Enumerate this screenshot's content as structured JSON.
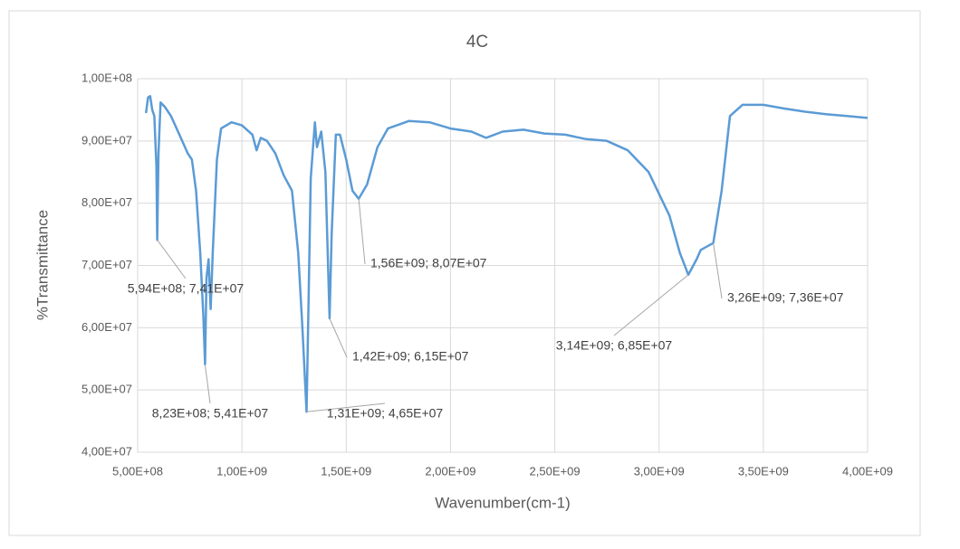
{
  "chart_data": {
    "type": "line",
    "title": "4C",
    "x_label": "Wavenumber(cm-1)",
    "y_label": "%Transmittance",
    "x": [
      540000000,
      550000000,
      560000000,
      570000000,
      580000000,
      590000000,
      594000000,
      600000000,
      610000000,
      630000000,
      660000000,
      700000000,
      740000000,
      760000000,
      780000000,
      800000000,
      815000000,
      823000000,
      830000000,
      840000000,
      850000000,
      860000000,
      880000000,
      900000000,
      950000000,
      1000000000,
      1050000000,
      1070000000,
      1090000000,
      1120000000,
      1160000000,
      1200000000,
      1240000000,
      1270000000,
      1290000000,
      1310000000,
      1320000000,
      1330000000,
      1350000000,
      1360000000,
      1380000000,
      1400000000,
      1420000000,
      1430000000,
      1450000000,
      1470000000,
      1500000000,
      1530000000,
      1560000000,
      1600000000,
      1650000000,
      1700000000,
      1800000000,
      1900000000,
      2000000000,
      2100000000,
      2170000000,
      2250000000,
      2350000000,
      2450000000,
      2550000000,
      2650000000,
      2750000000,
      2850000000,
      2950000000,
      3050000000,
      3100000000,
      3140000000,
      3180000000,
      3200000000,
      3260000000,
      3300000000,
      3340000000,
      3400000000,
      3500000000,
      3600000000,
      3700000000,
      3800000000,
      3900000000,
      4000000000
    ],
    "series": [
      {
        "name": "4C",
        "color": "#5b9bd5",
        "values": [
          94500000,
          97000000,
          97200000,
          95000000,
          94000000,
          86000000,
          74100000,
          88000000,
          96200000,
          95500000,
          94000000,
          91000000,
          88000000,
          87000000,
          82000000,
          72000000,
          62000000,
          54100000,
          68000000,
          71000000,
          63000000,
          72000000,
          87000000,
          92000000,
          93000000,
          92500000,
          91000000,
          88500000,
          90500000,
          90000000,
          88000000,
          84500000,
          82000000,
          72000000,
          60000000,
          46500000,
          65000000,
          84000000,
          93000000,
          89000000,
          91500000,
          85000000,
          61500000,
          75000000,
          91000000,
          91000000,
          87000000,
          82000000,
          80700000,
          83000000,
          89000000,
          92000000,
          93200000,
          93000000,
          92000000,
          91500000,
          90500000,
          91500000,
          91800000,
          91200000,
          91000000,
          90300000,
          90000000,
          88500000,
          85000000,
          78000000,
          72000000,
          68500000,
          71000000,
          72500000,
          73600000,
          82000000,
          94000000,
          95800000,
          95800000,
          95200000,
          94700000,
          94300000,
          94000000,
          93700000
        ]
      }
    ],
    "xlim": [
      500000000,
      4000000000
    ],
    "xticks": [
      {
        "value": 500000000,
        "label": "5,00E+08"
      },
      {
        "value": 1000000000,
        "label": "1,00E+09"
      },
      {
        "value": 1500000000,
        "label": "1,50E+09"
      },
      {
        "value": 2000000000,
        "label": "2,00E+09"
      },
      {
        "value": 2500000000,
        "label": "2,50E+09"
      },
      {
        "value": 3000000000,
        "label": "3,00E+09"
      },
      {
        "value": 3500000000,
        "label": "3,50E+09"
      },
      {
        "value": 4000000000,
        "label": "4,00E+09"
      }
    ],
    "ylim": [
      40000000,
      100000000
    ],
    "yticks": [
      {
        "value": 40000000,
        "label": "4,00E+07"
      },
      {
        "value": 50000000,
        "label": "5,00E+07"
      },
      {
        "value": 60000000,
        "label": "6,00E+07"
      },
      {
        "value": 70000000,
        "label": "7,00E+07"
      },
      {
        "value": 80000000,
        "label": "8,00E+07"
      },
      {
        "value": 90000000,
        "label": "9,00E+07"
      },
      {
        "value": 100000000,
        "label": "1,00E+08"
      }
    ],
    "grid": true,
    "annotations": [
      {
        "label": "5,94E+08; 7,41E+07",
        "x": 594000000,
        "y": 74100000
      },
      {
        "label": "8,23E+08; 5,41E+07",
        "x": 823000000,
        "y": 54100000
      },
      {
        "label": "1,31E+09; 4,65E+07",
        "x": 1310000000,
        "y": 46500000
      },
      {
        "label": "1,42E+09; 6,15E+07",
        "x": 1420000000,
        "y": 61500000
      },
      {
        "label": "1,56E+09; 8,07E+07",
        "x": 1560000000,
        "y": 80700000
      },
      {
        "label": "3,14E+09; 6,85E+07",
        "x": 3140000000,
        "y": 68500000
      },
      {
        "label": "3,26E+09; 7,36E+07",
        "x": 3260000000,
        "y": 73600000
      }
    ]
  }
}
